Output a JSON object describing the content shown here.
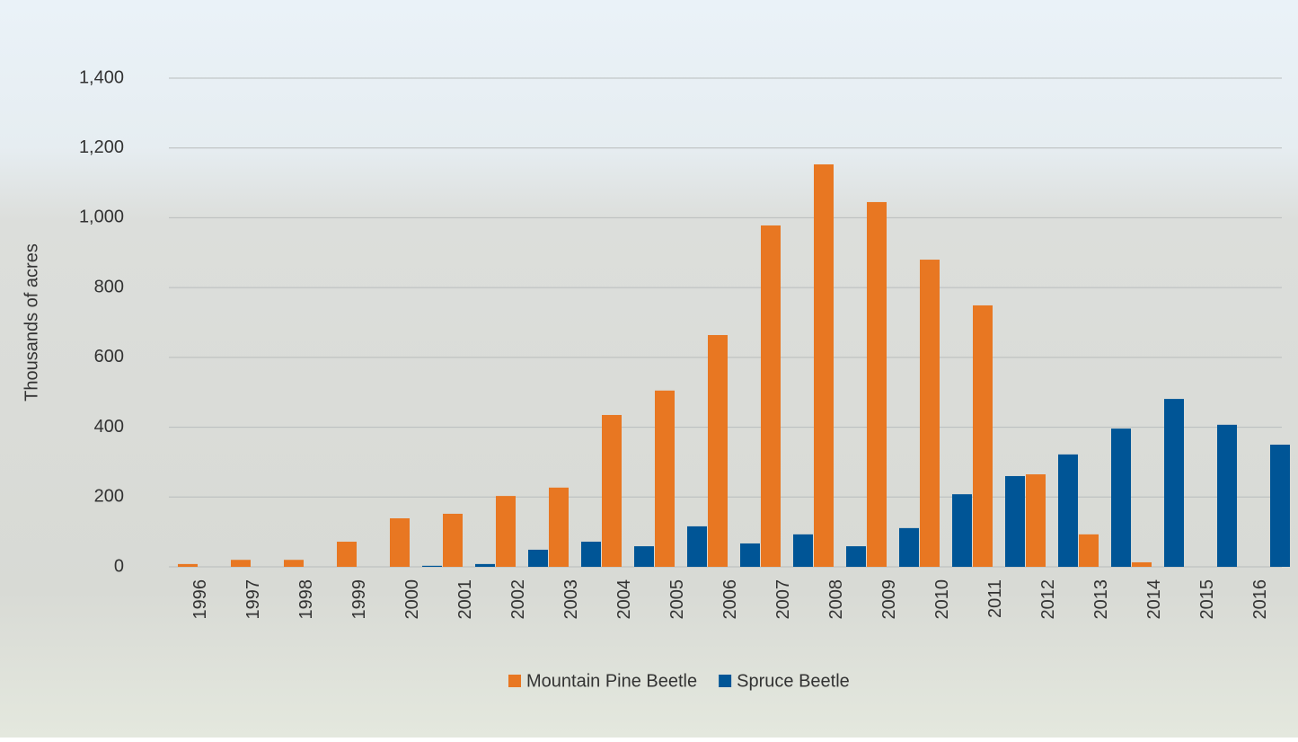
{
  "chart_data": {
    "type": "bar",
    "y_label": "Thousands of acres",
    "categories": [
      "1996",
      "1997",
      "1998",
      "1999",
      "2000",
      "2001",
      "2002",
      "2003",
      "2004",
      "2005",
      "2006",
      "2007",
      "2008",
      "2009",
      "2010",
      "2011",
      "2012",
      "2013",
      "2014",
      "2015",
      "2016"
    ],
    "series": [
      {
        "name": "Mountain Pine Beetle",
        "color": "#e87722",
        "values": [
          8,
          20,
          20,
          72,
          139,
          152,
          203,
          227,
          435,
          505,
          664,
          978,
          1153,
          1045,
          880,
          749,
          265,
          93,
          13,
          0,
          0
        ]
      },
      {
        "name": "Spruce Beetle",
        "color": "#005596",
        "values": [
          0,
          0,
          0,
          0,
          3,
          8,
          49,
          72,
          59,
          116,
          67,
          93,
          59,
          111,
          208,
          260,
          322,
          396,
          481,
          407,
          350
        ]
      }
    ],
    "ylim": [
      0,
      1400
    ],
    "yticks": [
      0,
      200,
      400,
      600,
      800,
      {
        "value": 1000,
        "label": "1,000"
      },
      {
        "value": 1200,
        "label": "1,200"
      },
      {
        "value": 1400,
        "label": "1,400"
      }
    ],
    "grid": true,
    "legend": "bottom"
  }
}
